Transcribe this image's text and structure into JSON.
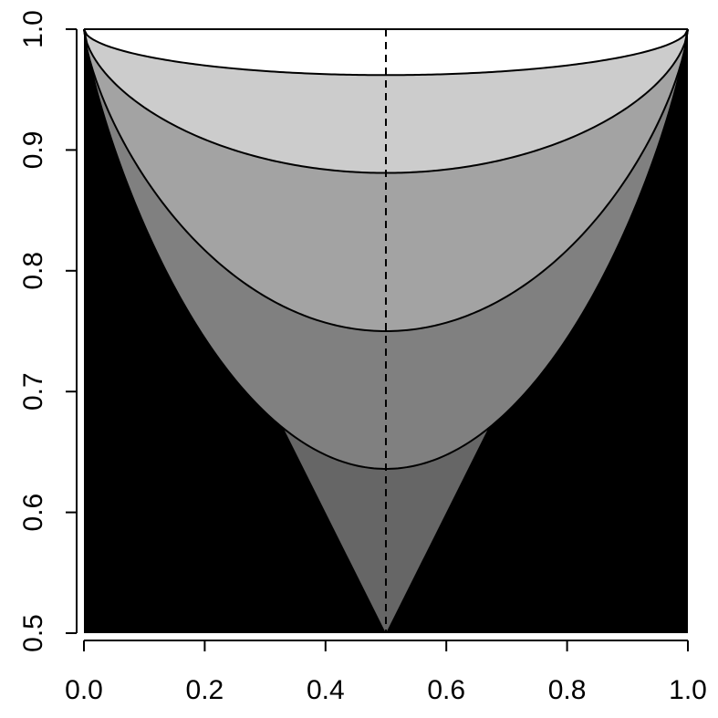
{
  "chart_data": {
    "type": "area",
    "title": "",
    "xlabel": "",
    "ylabel": "",
    "xlim": [
      0,
      1
    ],
    "ylim": [
      0.5,
      1
    ],
    "x_ticks": [
      "0.0",
      "0.2",
      "0.4",
      "0.6",
      "0.8",
      "1.0"
    ],
    "y_ticks": [
      "0.5",
      "0.6",
      "0.7",
      "0.8",
      "0.9",
      "1.0"
    ],
    "grid": false,
    "legend": "none",
    "reference_line": {
      "x": 0.5,
      "style": "dashed",
      "color": "#000000"
    },
    "background_fill": "#000000",
    "series": [
      {
        "minimum_at_x_0_5": 0.5,
        "shape": "v",
        "fill": "#666666"
      },
      {
        "minimum_at_x_0_5": 0.636,
        "fill": "#808080"
      },
      {
        "minimum_at_x_0_5": 0.75,
        "fill": "#a3a3a3"
      },
      {
        "minimum_at_x_0_5": 0.881,
        "fill": "#cccccc"
      },
      {
        "minimum_at_x_0_5": 0.962,
        "fill": "#ffffff"
      }
    ]
  }
}
